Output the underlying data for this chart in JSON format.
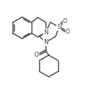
{
  "bg_color": "#ffffff",
  "line_color": "#3a3a3a",
  "line_width": 1.0,
  "figsize": [
    1.24,
    1.33
  ],
  "dpi": 100,
  "xlim": [
    0,
    10
  ],
  "ylim": [
    0,
    10.7
  ]
}
